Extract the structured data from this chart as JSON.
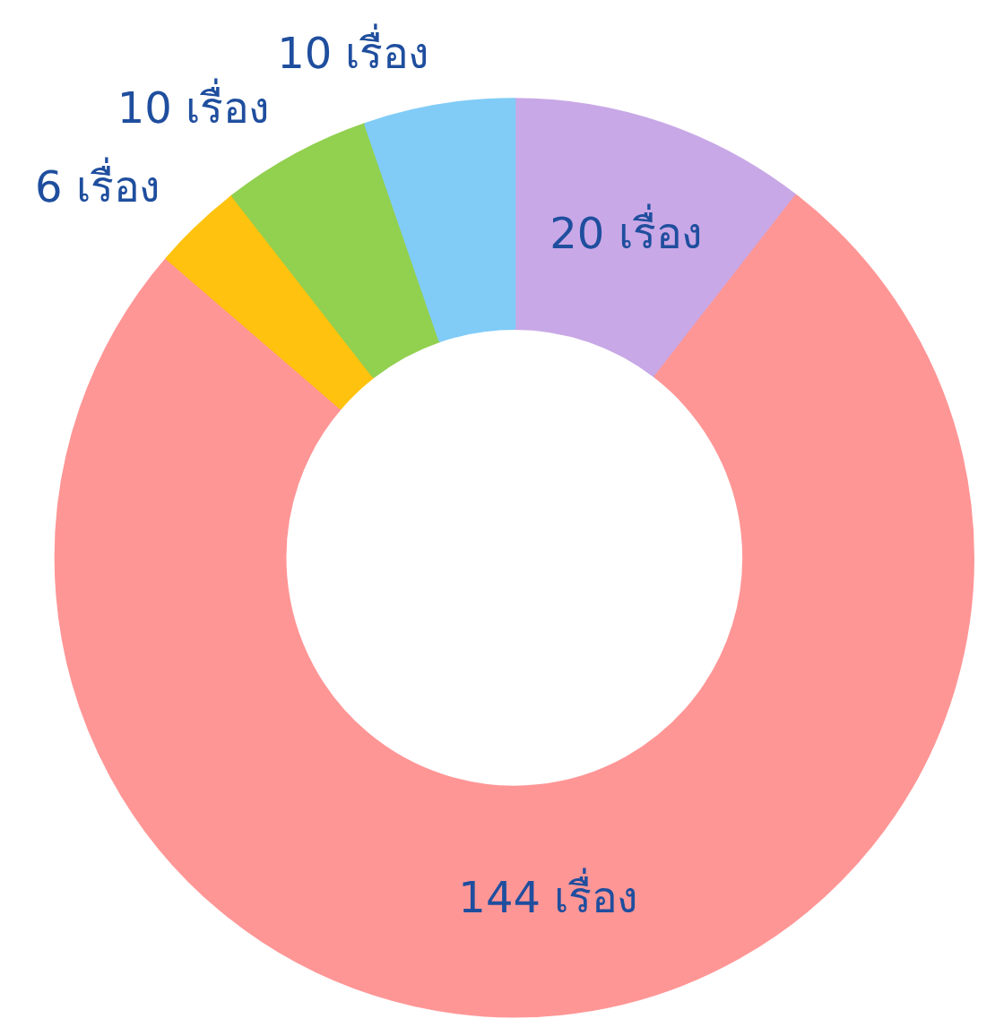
{
  "chart_data": {
    "type": "donut",
    "categories": [
      null,
      null,
      null,
      null,
      null
    ],
    "values": [
      20,
      144,
      6,
      10,
      10
    ],
    "colors": [
      "#c8a8e6",
      "#ff9696",
      "#ffc20e",
      "#92d050",
      "#80ccf7"
    ],
    "value_labels": [
      "20 เรื่อง",
      "144 เรื่อง",
      "6 เรื่อง",
      "10 เรื่อง",
      "10 เรื่อง"
    ]
  }
}
